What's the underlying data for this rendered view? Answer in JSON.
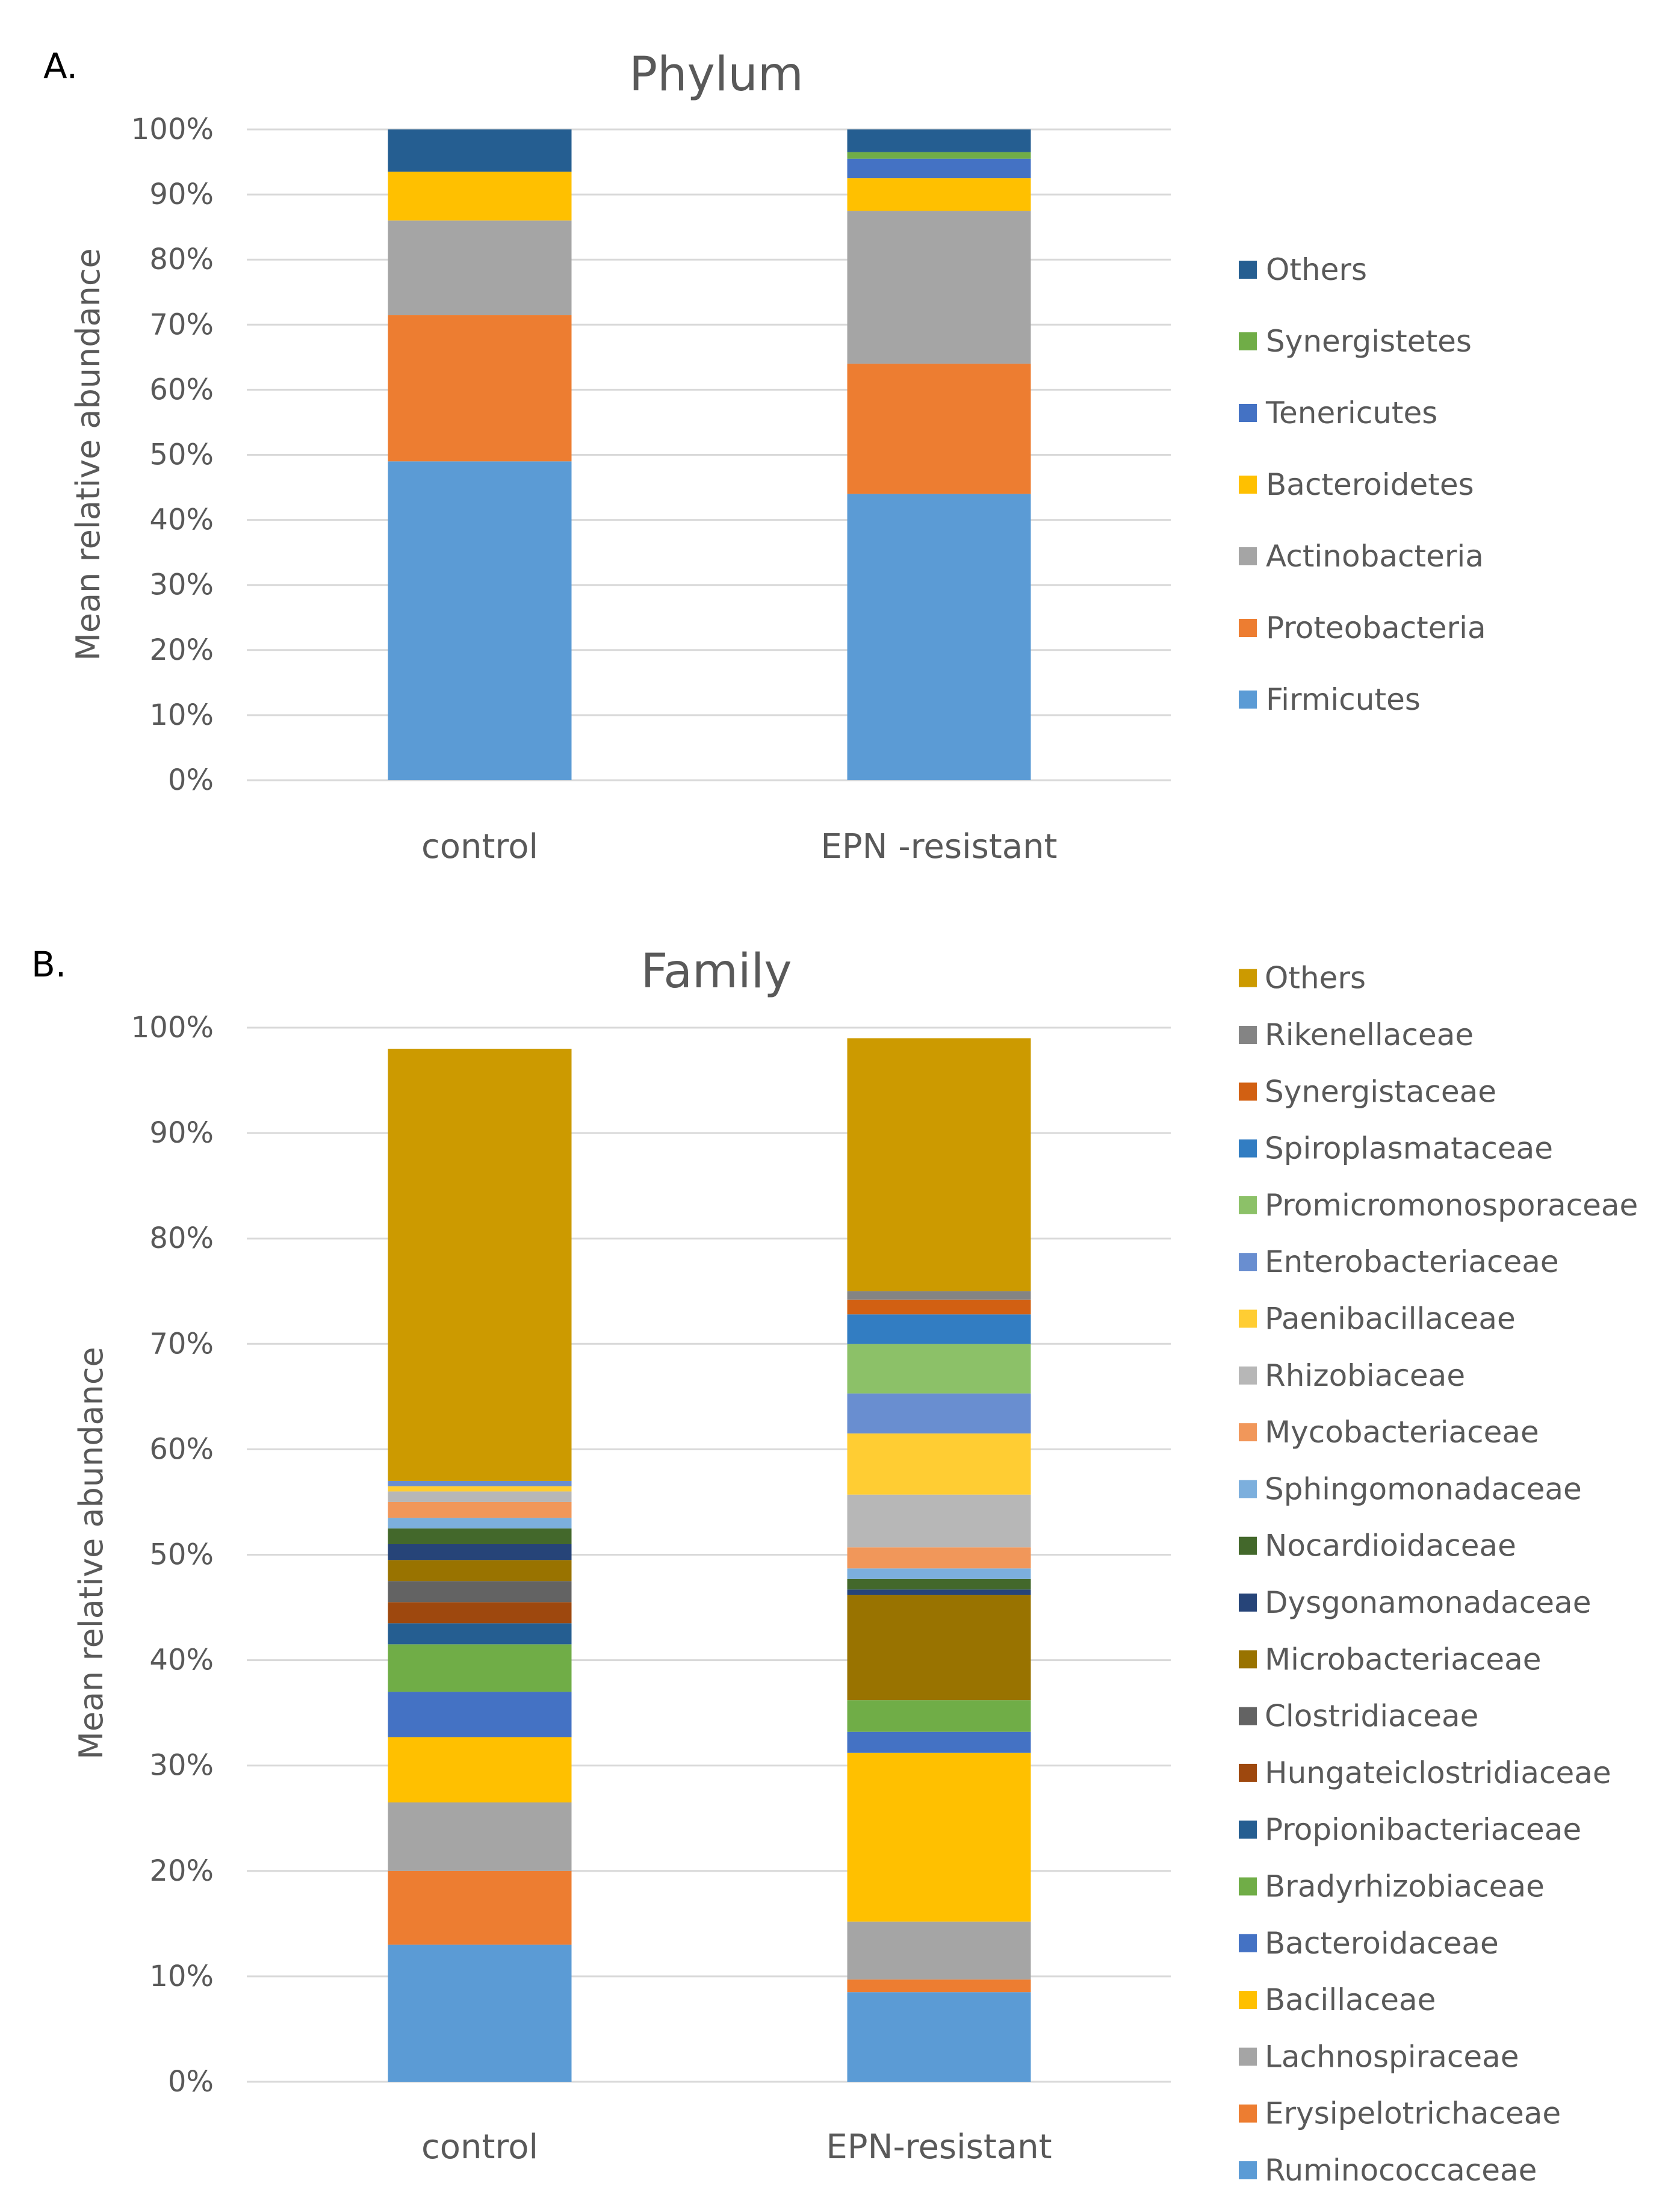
{
  "figure": {
    "panelA": "A.",
    "panelB": "B."
  },
  "chart_data": [
    {
      "type": "bar",
      "stacked": true,
      "title": "Phylum",
      "ylabel": "Mean relative abundance",
      "xlabel": "",
      "ylim": [
        0,
        100
      ],
      "yticks": [
        "0%",
        "10%",
        "20%",
        "30%",
        "40%",
        "50%",
        "60%",
        "70%",
        "80%",
        "90%",
        "100%"
      ],
      "categories": [
        "control",
        "EPN -resistant"
      ],
      "legend_position": "right",
      "series": [
        {
          "name": "Firmicutes",
          "color": "#5B9BD5",
          "values": [
            49,
            44
          ]
        },
        {
          "name": "Proteobacteria",
          "color": "#ED7D31",
          "values": [
            22.5,
            20
          ]
        },
        {
          "name": "Actinobacteria",
          "color": "#A5A5A5",
          "values": [
            14.5,
            23.5
          ]
        },
        {
          "name": "Bacteroidetes",
          "color": "#FFC000",
          "values": [
            7.5,
            5
          ]
        },
        {
          "name": "Tenericutes",
          "color": "#4472C4",
          "values": [
            0,
            3
          ]
        },
        {
          "name": "Synergistetes",
          "color": "#70AD47",
          "values": [
            0,
            1
          ]
        },
        {
          "name": "Others",
          "color": "#255E91",
          "values": [
            6.5,
            3.5
          ]
        }
      ]
    },
    {
      "type": "bar",
      "stacked": true,
      "title": "Family",
      "ylabel": "Mean relative  abundance",
      "xlabel": "",
      "ylim": [
        0,
        100
      ],
      "yticks": [
        "0%",
        "10%",
        "20%",
        "30%",
        "40%",
        "50%",
        "60%",
        "70%",
        "80%",
        "90%",
        "100%"
      ],
      "categories": [
        "control",
        "EPN-resistant"
      ],
      "legend_position": "right",
      "series": [
        {
          "name": "Ruminococcaceae",
          "color": "#5B9BD5",
          "values": [
            13,
            8.5
          ]
        },
        {
          "name": "Erysipelotrichaceae",
          "color": "#ED7D31",
          "values": [
            7,
            1.2
          ]
        },
        {
          "name": "Lachnospiraceae",
          "color": "#A5A5A5",
          "values": [
            6.5,
            5.5
          ]
        },
        {
          "name": "Bacillaceae",
          "color": "#FFC000",
          "values": [
            6.2,
            16
          ]
        },
        {
          "name": "Bacteroidaceae",
          "color": "#4472C4",
          "values": [
            4.3,
            2
          ]
        },
        {
          "name": "Bradyrhizobiaceae",
          "color": "#70AD47",
          "values": [
            4.5,
            3
          ]
        },
        {
          "name": "Propionibacteriaceae",
          "color": "#255E91",
          "values": [
            2,
            0
          ]
        },
        {
          "name": "Hungateiclostridiaceae",
          "color": "#9E480E",
          "values": [
            2,
            0
          ]
        },
        {
          "name": "Clostridiaceae",
          "color": "#636363",
          "values": [
            2,
            0
          ]
        },
        {
          "name": "Microbacteriaceae",
          "color": "#997300",
          "values": [
            2,
            10
          ]
        },
        {
          "name": "Dysgonamonadaceae",
          "color": "#264478",
          "values": [
            1.5,
            0.5
          ]
        },
        {
          "name": "Nocardioidaceae",
          "color": "#43682B",
          "values": [
            1.5,
            1
          ]
        },
        {
          "name": "Sphingomonadaceae",
          "color": "#7CAFDD",
          "values": [
            1,
            1
          ]
        },
        {
          "name": "Mycobacteriaceae",
          "color": "#F1975A",
          "values": [
            1.5,
            2
          ]
        },
        {
          "name": "Rhizobiaceae",
          "color": "#B7B7B7",
          "values": [
            1,
            5
          ]
        },
        {
          "name": "Paenibacillaceae",
          "color": "#FFCD33",
          "values": [
            0.5,
            5.8
          ]
        },
        {
          "name": "Enterobacteriaceae",
          "color": "#698ED0",
          "values": [
            0.5,
            3.8
          ]
        },
        {
          "name": "Promicromonosporaceae",
          "color": "#8CC168",
          "values": [
            0,
            4.7
          ]
        },
        {
          "name": "Spiroplasmataceae",
          "color": "#327DC2",
          "values": [
            0,
            2.8
          ]
        },
        {
          "name": "Synergistaceae",
          "color": "#D26012",
          "values": [
            0,
            1.4
          ]
        },
        {
          "name": "Rikenellaceae",
          "color": "#848484",
          "values": [
            0,
            0.8
          ]
        },
        {
          "name": "Others",
          "color": "#CC9A00",
          "values": [
            41,
            24
          ]
        }
      ]
    }
  ]
}
